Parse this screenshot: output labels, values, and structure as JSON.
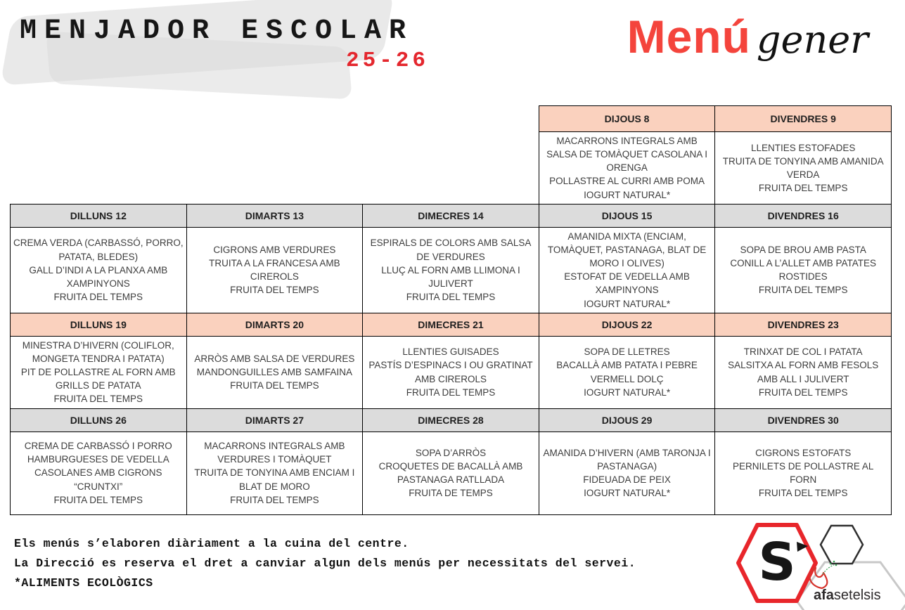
{
  "header": {
    "title": "MENJADOR ESCOLAR",
    "year": "25-26",
    "menu_word": "Menú",
    "month_word": "gener"
  },
  "colors": {
    "pink_header": "#fad1be",
    "gray_header": "#dcdcdc",
    "accent_red": "#e4272e",
    "menu_red": "#f4443c",
    "hexagon_red": "#e8262b",
    "hexagon_gray": "#c8c8c8",
    "leaf_red": "#d6332c",
    "leaf_green": "#3fa45b"
  },
  "weeks": [
    {
      "header_style": "pink_header",
      "days": [
        {
          "label": "DIJOUS 8",
          "dishes": [
            "MACARRONS INTEGRALS AMB SALSA DE TOMÀQUET CASOLANA I ORENGA",
            "POLLASTRE AL CURRI AMB POMA",
            "IOGURT NATURAL*"
          ]
        },
        {
          "label": "DIVENDRES 9",
          "dishes": [
            "LLENTIES ESTOFADES",
            "TRUITA DE TONYINA AMB AMANIDA VERDA",
            "FRUITA DEL TEMPS"
          ]
        }
      ]
    },
    {
      "header_style": "gray_header",
      "days": [
        {
          "label": "DILLUNS 12",
          "dishes": [
            "CREMA VERDA (CARBASSÓ, PORRO, PATATA, BLEDES)",
            "GALL D’INDI A LA PLANXA AMB XAMPINYONS",
            "FRUITA DEL TEMPS"
          ]
        },
        {
          "label": "DIMARTS 13",
          "dishes": [
            "CIGRONS AMB VERDURES",
            "TRUITA A LA FRANCESA AMB CIREROLS",
            "FRUITA DEL TEMPS"
          ]
        },
        {
          "label": "DIMECRES 14",
          "dishes": [
            "ESPIRALS DE COLORS AMB SALSA DE VERDURES",
            "LLUÇ AL FORN AMB LLIMONA I JULIVERT",
            "FRUITA DEL TEMPS"
          ]
        },
        {
          "label": "DIJOUS 15",
          "dishes": [
            "AMANIDA MIXTA (ENCIAM, TOMÀQUET, PASTANAGA, BLAT DE MORO I OLIVES)",
            "ESTOFAT DE VEDELLA AMB XAMPINYONS",
            "IOGURT NATURAL*"
          ]
        },
        {
          "label": "DIVENDRES 16",
          "dishes": [
            "SOPA DE BROU AMB PASTA",
            "CONILL A L’ALLET AMB PATATES ROSTIDES",
            "FRUITA DEL TEMPS"
          ]
        }
      ]
    },
    {
      "header_style": "pink_header",
      "days": [
        {
          "label": "DILLUNS 19",
          "dishes": [
            "MINESTRA D’HIVERN (COLIFLOR, MONGETA TENDRA I PATATA)",
            "PIT DE POLLASTRE AL FORN AMB GRILLS DE PATATA",
            "FRUITA DEL TEMPS"
          ]
        },
        {
          "label": "DIMARTS 20",
          "dishes": [
            "ARRÒS AMB SALSA DE VERDURES",
            "MANDONGUILLES AMB SAMFAINA",
            "FRUITA DEL TEMPS"
          ]
        },
        {
          "label": "DIMECRES 21",
          "dishes": [
            "LLENTIES GUISADES",
            "PASTÍS D’ESPINACS I OU GRATINAT AMB CIREROLS",
            "FRUITA DEL TEMPS"
          ]
        },
        {
          "label": "DIJOUS 22",
          "dishes": [
            "SOPA DE LLETRES",
            "BACALLÀ AMB PATATA I PEBRE VERMELL DOLÇ",
            "IOGURT NATURAL*"
          ]
        },
        {
          "label": "DIVENDRES 23",
          "dishes": [
            "TRINXAT DE COL I PATATA",
            "SALSITXA AL FORN AMB FESOLS AMB ALL I JULIVERT",
            "FRUITA DEL TEMPS"
          ]
        }
      ]
    },
    {
      "header_style": "gray_header",
      "days": [
        {
          "label": "DILLUNS 26",
          "dishes": [
            "CREMA DE CARBASSÓ I PORRO",
            "HAMBURGUESES DE VEDELLA CASOLANES AMB CIGRONS “CRUNTXI”",
            "FRUITA DEL TEMPS"
          ]
        },
        {
          "label": "DIMARTS 27",
          "dishes": [
            "MACARRONS INTEGRALS AMB VERDURES I TOMÀQUET",
            "TRUITA DE TONYINA AMB ENCIAM I BLAT DE MORO",
            "FRUITA DEL TEMPS"
          ]
        },
        {
          "label": "DIMECRES 28",
          "dishes": [
            "SOPA D’ARRÒS",
            "CROQUETES DE BACALLÀ AMB PASTANAGA RATLLADA",
            "FRUITA DE TEMPS"
          ]
        },
        {
          "label": "DIJOUS 29",
          "dishes": [
            "AMANIDA D’HIVERN (AMB TARONJA I PASTANAGA)",
            "FIDEUADA DE PEIX",
            "IOGURT NATURAL*"
          ]
        },
        {
          "label": "DIVENDRES 30",
          "dishes": [
            "CIGRONS ESTOFATS",
            "PERNILETS DE POLLASTRE AL FORN",
            "FRUITA DEL TEMPS"
          ]
        }
      ]
    }
  ],
  "footer": {
    "line1": "Els menús s’elaboren diàriament a la cuina del centre.",
    "line2": "La Direcció es reserva el dret a canviar algun dels menús per necessitats del servei.",
    "line3": "*ALIMENTS ECOLÒGICS"
  },
  "logos": {
    "s_letter": "S",
    "afa_bold": "afa",
    "afa_rest": "setelsis"
  }
}
